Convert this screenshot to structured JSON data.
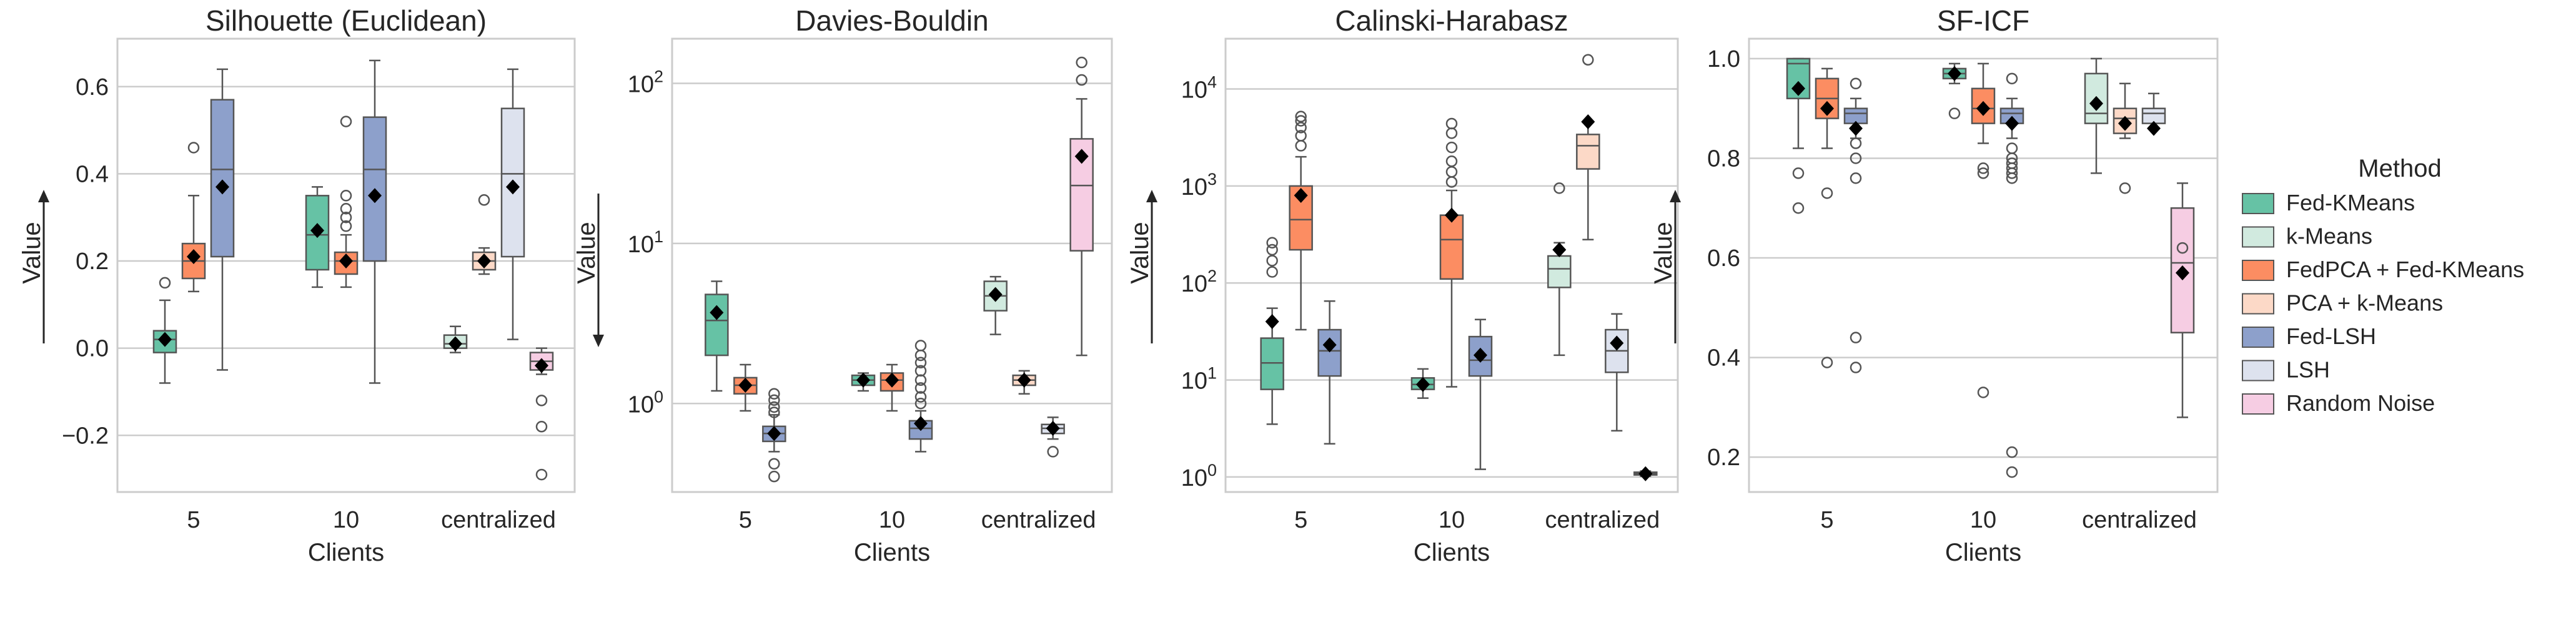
{
  "chart_data": [
    {
      "type": "box",
      "title": "Silhouette (Euclidean)",
      "xlabel": "Clients",
      "ylabel": "Value",
      "arrow": "up",
      "scale": "linear",
      "ylim": [
        -0.33,
        0.71
      ],
      "yticks": [
        -0.2,
        0.0,
        0.2,
        0.4,
        0.6
      ],
      "yticklabels": [
        "−0.2",
        "0.0",
        "0.2",
        "0.4",
        "0.6"
      ],
      "categories": [
        "5",
        "10",
        "centralized"
      ],
      "groups": [
        {
          "category": "5",
          "boxes": [
            {
              "method": "Fed-KMeans",
              "whislo": -0.08,
              "q1": -0.01,
              "med": 0.02,
              "q3": 0.04,
              "whishi": 0.11,
              "mean": 0.02,
              "fliers": [
                0.15
              ]
            },
            {
              "method": "FedPCA + Fed-KMeans",
              "whislo": 0.13,
              "q1": 0.16,
              "med": 0.2,
              "q3": 0.24,
              "whishi": 0.35,
              "mean": 0.21,
              "fliers": [
                0.46
              ]
            },
            {
              "method": "Fed-LSH",
              "whislo": -0.05,
              "q1": 0.21,
              "med": 0.41,
              "q3": 0.57,
              "whishi": 0.64,
              "mean": 0.37,
              "fliers": []
            }
          ]
        },
        {
          "category": "10",
          "boxes": [
            {
              "method": "Fed-KMeans",
              "whislo": 0.14,
              "q1": 0.18,
              "med": 0.26,
              "q3": 0.35,
              "whishi": 0.37,
              "mean": 0.27,
              "fliers": []
            },
            {
              "method": "FedPCA + Fed-KMeans",
              "whislo": 0.14,
              "q1": 0.17,
              "med": 0.2,
              "q3": 0.22,
              "whishi": 0.26,
              "mean": 0.2,
              "fliers": [
                0.28,
                0.3,
                0.32,
                0.35,
                0.52
              ]
            },
            {
              "method": "Fed-LSH",
              "whislo": -0.08,
              "q1": 0.2,
              "med": 0.41,
              "q3": 0.53,
              "whishi": 0.66,
              "mean": 0.35,
              "fliers": []
            }
          ]
        },
        {
          "category": "centralized",
          "boxes": [
            {
              "method": "k-Means",
              "whislo": -0.01,
              "q1": 0.0,
              "med": 0.01,
              "q3": 0.03,
              "whishi": 0.05,
              "mean": 0.01,
              "fliers": []
            },
            {
              "method": "PCA + k-Means",
              "whislo": 0.17,
              "q1": 0.18,
              "med": 0.2,
              "q3": 0.22,
              "whishi": 0.23,
              "mean": 0.2,
              "fliers": [
                0.34
              ]
            },
            {
              "method": "LSH",
              "whislo": 0.02,
              "q1": 0.21,
              "med": 0.4,
              "q3": 0.55,
              "whishi": 0.64,
              "mean": 0.37,
              "fliers": []
            },
            {
              "method": "Random Noise",
              "whislo": -0.06,
              "q1": -0.05,
              "med": -0.03,
              "q3": -0.01,
              "whishi": 0.0,
              "mean": -0.04,
              "fliers": [
                -0.12,
                -0.18,
                -0.29
              ]
            }
          ]
        }
      ]
    },
    {
      "type": "box",
      "title": "Davies-Bouldin",
      "xlabel": "Clients",
      "ylabel": "Value",
      "arrow": "down",
      "scale": "log",
      "ylim": [
        0.28,
        190
      ],
      "yticks": [
        1,
        10,
        100
      ],
      "yticklabels": [
        [
          "10",
          "0"
        ],
        [
          "10",
          "1"
        ],
        [
          "10",
          "2"
        ]
      ],
      "categories": [
        "5",
        "10",
        "centralized"
      ],
      "groups": [
        {
          "category": "5",
          "boxes": [
            {
              "method": "Fed-KMeans",
              "whislo": 1.2,
              "q1": 2.0,
              "med": 3.3,
              "q3": 4.8,
              "whishi": 5.8,
              "mean": 3.7,
              "fliers": []
            },
            {
              "method": "FedPCA + Fed-KMeans",
              "whislo": 0.9,
              "q1": 1.15,
              "med": 1.3,
              "q3": 1.45,
              "whishi": 1.75,
              "mean": 1.3,
              "fliers": []
            },
            {
              "method": "Fed-LSH",
              "whislo": 0.5,
              "q1": 0.58,
              "med": 0.65,
              "q3": 0.72,
              "whishi": 0.85,
              "mean": 0.65,
              "fliers": [
                0.35,
                0.42,
                0.88,
                0.95,
                1.05,
                1.15
              ]
            }
          ]
        },
        {
          "category": "10",
          "boxes": [
            {
              "method": "Fed-KMeans",
              "whislo": 1.2,
              "q1": 1.3,
              "med": 1.4,
              "q3": 1.5,
              "whishi": 1.55,
              "mean": 1.4,
              "fliers": []
            },
            {
              "method": "FedPCA + Fed-KMeans",
              "whislo": 0.9,
              "q1": 1.2,
              "med": 1.4,
              "q3": 1.55,
              "whishi": 1.75,
              "mean": 1.4,
              "fliers": []
            },
            {
              "method": "Fed-LSH",
              "whislo": 0.5,
              "q1": 0.6,
              "med": 0.7,
              "q3": 0.78,
              "whishi": 0.9,
              "mean": 0.75,
              "fliers": [
                1.0,
                1.1,
                1.25,
                1.4,
                1.6,
                1.8,
                2.0,
                2.3
              ]
            }
          ]
        },
        {
          "category": "centralized",
          "boxes": [
            {
              "method": "k-Means",
              "whislo": 2.7,
              "q1": 3.8,
              "med": 4.7,
              "q3": 5.8,
              "whishi": 6.2,
              "mean": 4.8,
              "fliers": []
            },
            {
              "method": "PCA + k-Means",
              "whislo": 1.15,
              "q1": 1.3,
              "med": 1.4,
              "q3": 1.5,
              "whishi": 1.6,
              "mean": 1.4,
              "fliers": []
            },
            {
              "method": "LSH",
              "whislo": 0.6,
              "q1": 0.65,
              "med": 0.7,
              "q3": 0.74,
              "whishi": 0.82,
              "mean": 0.7,
              "fliers": [
                0.5
              ]
            },
            {
              "method": "Random Noise",
              "whislo": 2.0,
              "q1": 9.0,
              "med": 23,
              "q3": 45,
              "whishi": 80,
              "mean": 35,
              "fliers": [
                105,
                135
              ]
            }
          ]
        }
      ]
    },
    {
      "type": "box",
      "title": "Calinski-Harabasz",
      "xlabel": "Clients",
      "ylabel": "Value",
      "arrow": "up",
      "scale": "log",
      "ylim": [
        0.7,
        33000
      ],
      "yticks": [
        1,
        10,
        100,
        1000,
        10000
      ],
      "yticklabels": [
        [
          "10",
          "0"
        ],
        [
          "10",
          "1"
        ],
        [
          "10",
          "2"
        ],
        [
          "10",
          "3"
        ],
        [
          "10",
          "4"
        ]
      ],
      "categories": [
        "5",
        "10",
        "centralized"
      ],
      "groups": [
        {
          "category": "5",
          "boxes": [
            {
              "method": "Fed-KMeans",
              "whislo": 3.5,
              "q1": 8,
              "med": 15,
              "q3": 27,
              "whishi": 55,
              "mean": 40,
              "fliers": [
                130,
                170,
                220,
                260
              ]
            },
            {
              "method": "FedPCA + Fed-KMeans",
              "whislo": 33,
              "q1": 220,
              "med": 450,
              "q3": 1000,
              "whishi": 2000,
              "mean": 800,
              "fliers": [
                2600,
                3300,
                4000,
                4700,
                5200
              ]
            },
            {
              "method": "Fed-LSH",
              "whislo": 2.2,
              "q1": 11,
              "med": 20,
              "q3": 33,
              "whishi": 65,
              "mean": 23,
              "fliers": []
            }
          ]
        },
        {
          "category": "10",
          "boxes": [
            {
              "method": "Fed-KMeans",
              "whislo": 6.5,
              "q1": 8,
              "med": 9,
              "q3": 10.5,
              "whishi": 13,
              "mean": 9,
              "fliers": []
            },
            {
              "method": "FedPCA + Fed-KMeans",
              "whislo": 8.5,
              "q1": 110,
              "med": 280,
              "q3": 500,
              "whishi": 900,
              "mean": 500,
              "fliers": [
                1100,
                1400,
                1800,
                2500,
                3500,
                4400
              ]
            },
            {
              "method": "Fed-LSH",
              "whislo": 1.2,
              "q1": 11,
              "med": 16,
              "q3": 28,
              "whishi": 42,
              "mean": 18,
              "fliers": []
            }
          ]
        },
        {
          "category": "centralized",
          "boxes": [
            {
              "method": "k-Means",
              "whislo": 18,
              "q1": 90,
              "med": 140,
              "q3": 190,
              "whishi": 260,
              "mean": 220,
              "fliers": [
                950
              ]
            },
            {
              "method": "PCA + k-Means",
              "whislo": 280,
              "q1": 1500,
              "med": 2600,
              "q3": 3400,
              "whishi": 4500,
              "mean": 4600,
              "fliers": [
                20000
              ]
            },
            {
              "method": "LSH",
              "whislo": 3.0,
              "q1": 12,
              "med": 20,
              "q3": 33,
              "whishi": 48,
              "mean": 24,
              "fliers": []
            },
            {
              "method": "Random Noise",
              "whislo": 1.02,
              "q1": 1.05,
              "med": 1.08,
              "q3": 1.12,
              "whishi": 1.15,
              "mean": 1.08,
              "fliers": []
            }
          ]
        }
      ]
    },
    {
      "type": "box",
      "title": "SF-ICF",
      "xlabel": "Clients",
      "ylabel": "Value",
      "arrow": "up",
      "scale": "linear",
      "ylim": [
        0.13,
        1.04
      ],
      "yticks": [
        0.2,
        0.4,
        0.6,
        0.8,
        1.0
      ],
      "yticklabels": [
        "0.2",
        "0.4",
        "0.6",
        "0.8",
        "1.0"
      ],
      "categories": [
        "5",
        "10",
        "centralized"
      ],
      "groups": [
        {
          "category": "5",
          "boxes": [
            {
              "method": "Fed-KMeans",
              "whislo": 0.82,
              "q1": 0.92,
              "med": 0.99,
              "q3": 1.0,
              "whishi": 1.0,
              "mean": 0.94,
              "fliers": [
                0.77,
                0.7
              ]
            },
            {
              "method": "FedPCA + Fed-KMeans",
              "whislo": 0.82,
              "q1": 0.88,
              "med": 0.92,
              "q3": 0.96,
              "whishi": 0.98,
              "mean": 0.9,
              "fliers": [
                0.73,
                0.39
              ]
            },
            {
              "method": "Fed-LSH",
              "whislo": 0.84,
              "q1": 0.87,
              "med": 0.89,
              "q3": 0.9,
              "whishi": 0.92,
              "mean": 0.86,
              "fliers": [
                0.95,
                0.83,
                0.8,
                0.76,
                0.44,
                0.38
              ]
            }
          ]
        },
        {
          "category": "10",
          "boxes": [
            {
              "method": "Fed-KMeans",
              "whislo": 0.95,
              "q1": 0.96,
              "med": 0.97,
              "q3": 0.98,
              "whishi": 0.99,
              "mean": 0.97,
              "fliers": [
                0.89
              ]
            },
            {
              "method": "FedPCA + Fed-KMeans",
              "whislo": 0.83,
              "q1": 0.87,
              "med": 0.9,
              "q3": 0.94,
              "whishi": 0.99,
              "mean": 0.9,
              "fliers": [
                0.78,
                0.77,
                0.33
              ]
            },
            {
              "method": "Fed-LSH",
              "whislo": 0.84,
              "q1": 0.87,
              "med": 0.89,
              "q3": 0.9,
              "whishi": 0.92,
              "mean": 0.87,
              "fliers": [
                0.96,
                0.82,
                0.8,
                0.79,
                0.78,
                0.77,
                0.76,
                0.21,
                0.17
              ]
            }
          ]
        },
        {
          "category": "centralized",
          "boxes": [
            {
              "method": "k-Means",
              "whislo": 0.77,
              "q1": 0.87,
              "med": 0.89,
              "q3": 0.97,
              "whishi": 1.0,
              "mean": 0.91,
              "fliers": []
            },
            {
              "method": "PCA + k-Means",
              "whislo": 0.84,
              "q1": 0.85,
              "med": 0.88,
              "q3": 0.9,
              "whishi": 0.95,
              "mean": 0.87,
              "fliers": [
                0.74
              ]
            },
            {
              "method": "LSH",
              "whislo": 0.86,
              "q1": 0.87,
              "med": 0.89,
              "q3": 0.9,
              "whishi": 0.93,
              "mean": 0.86,
              "fliers": []
            },
            {
              "method": "Random Noise",
              "whislo": 0.28,
              "q1": 0.45,
              "med": 0.59,
              "q3": 0.7,
              "whishi": 0.75,
              "mean": 0.57,
              "fliers": [
                0.62
              ]
            }
          ]
        }
      ]
    }
  ],
  "legend": {
    "title": "Method",
    "position": "right",
    "items": [
      {
        "label": "Fed-KMeans",
        "color": "#66c2a5"
      },
      {
        "label": "k-Means",
        "color": "#d1eadf"
      },
      {
        "label": "FedPCA + Fed-KMeans",
        "color": "#fc8d62"
      },
      {
        "label": "PCA + k-Means",
        "color": "#fcd9c7"
      },
      {
        "label": "Fed-LSH",
        "color": "#8da0cb"
      },
      {
        "label": "LSH",
        "color": "#dde2ee"
      },
      {
        "label": "Random Noise",
        "color": "#f6cde3"
      }
    ]
  }
}
